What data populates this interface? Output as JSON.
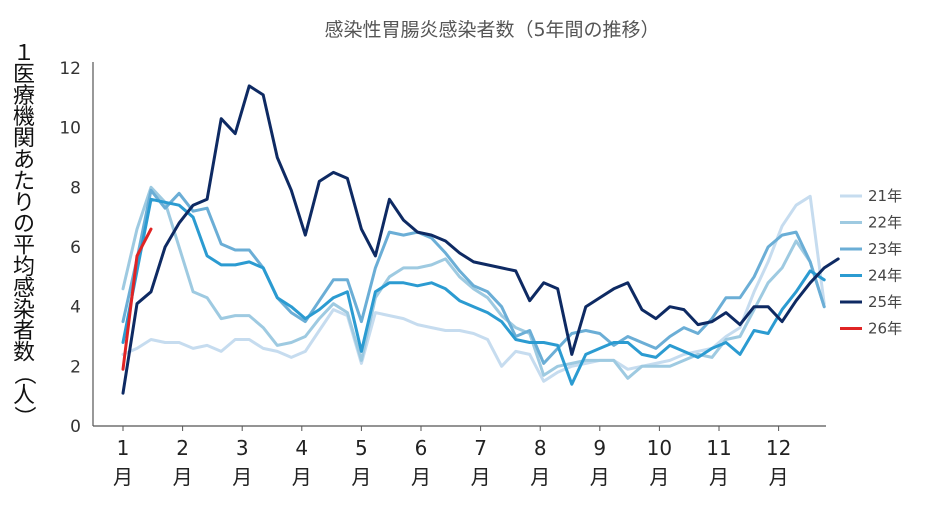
{
  "chart_data": {
    "type": "line",
    "title": "感染性胃腸炎感染者数（5年間の推移）",
    "ylabel": "１医療機関あたりの平均感染者数（人）",
    "xlabel": "",
    "ylim": [
      0,
      12
    ],
    "yticks": [
      "0",
      "2",
      "4",
      "6",
      "8",
      "10",
      "12"
    ],
    "xlim": [
      1,
      13.2
    ],
    "x_ticks": [
      {
        "num": "1",
        "unit": "月"
      },
      {
        "num": "2",
        "unit": "月"
      },
      {
        "num": "3",
        "unit": "月"
      },
      {
        "num": "4",
        "unit": "月"
      },
      {
        "num": "5",
        "unit": "月"
      },
      {
        "num": "6",
        "unit": "月"
      },
      {
        "num": "7",
        "unit": "月"
      },
      {
        "num": "8",
        "unit": "月"
      },
      {
        "num": "9",
        "unit": "月"
      },
      {
        "num": "10",
        "unit": "月"
      },
      {
        "num": "11",
        "unit": "月"
      },
      {
        "num": "12",
        "unit": "月"
      }
    ],
    "grid": false,
    "legend_position": "right",
    "series": [
      {
        "name": "21年",
        "color": "#c6dcef",
        "values": [
          2.4,
          2.6,
          2.9,
          2.8,
          2.8,
          2.6,
          2.7,
          2.5,
          2.9,
          2.9,
          2.6,
          2.5,
          2.3,
          2.5,
          3.2,
          3.9,
          3.7,
          2.1,
          3.8,
          3.7,
          3.6,
          3.4,
          3.3,
          3.2,
          3.2,
          3.1,
          2.9,
          2.0,
          2.5,
          2.4,
          1.5,
          1.8,
          2.0,
          2.1,
          2.2,
          2.2,
          1.9,
          2.0,
          2.1,
          2.2,
          2.4,
          2.5,
          2.6,
          3.0,
          3.3,
          4.5,
          5.5,
          6.7,
          7.4,
          7.7,
          4.1
        ]
      },
      {
        "name": "22年",
        "color": "#9ecae1",
        "values": [
          4.6,
          6.6,
          8.0,
          7.5,
          6.0,
          4.5,
          4.3,
          3.6,
          3.7,
          3.7,
          3.3,
          2.7,
          2.8,
          3.0,
          3.6,
          4.1,
          3.8,
          2.2,
          4.3,
          5.0,
          5.3,
          5.3,
          5.4,
          5.6,
          5.0,
          4.6,
          4.3,
          3.7,
          3.3,
          3.1,
          1.7,
          2.0,
          2.1,
          2.2,
          2.2,
          2.2,
          1.6,
          2.0,
          2.0,
          2.0,
          2.2,
          2.4,
          2.3,
          2.9,
          3.0,
          3.9,
          4.8,
          5.3,
          6.2,
          5.5,
          4.0
        ]
      },
      {
        "name": "23年",
        "color": "#6baed6",
        "values": [
          3.5,
          5.6,
          7.9,
          7.3,
          7.8,
          7.2,
          7.3,
          6.1,
          5.9,
          5.9,
          5.3,
          4.3,
          3.8,
          3.5,
          4.2,
          4.9,
          4.9,
          3.5,
          5.3,
          6.5,
          6.4,
          6.5,
          6.3,
          5.8,
          5.2,
          4.7,
          4.5,
          4.0,
          3.0,
          3.2,
          2.1,
          2.6,
          3.1,
          3.2,
          3.1,
          2.7,
          3.0,
          2.8,
          2.6,
          3.0,
          3.3,
          3.1,
          3.6,
          4.3,
          4.3,
          5.0,
          6.0,
          6.4,
          6.5,
          5.5,
          4.0
        ]
      },
      {
        "name": "24年",
        "color": "#2b9bd1",
        "values": [
          2.8,
          5.2,
          7.6,
          7.5,
          7.4,
          7.0,
          5.7,
          5.4,
          5.4,
          5.5,
          5.3,
          4.3,
          4.0,
          3.6,
          3.9,
          4.3,
          4.5,
          2.5,
          4.5,
          4.8,
          4.8,
          4.7,
          4.8,
          4.6,
          4.2,
          4.0,
          3.8,
          3.5,
          2.9,
          2.8,
          2.8,
          2.7,
          1.4,
          2.4,
          2.6,
          2.8,
          2.8,
          2.4,
          2.3,
          2.7,
          2.5,
          2.3,
          2.6,
          2.8,
          2.4,
          3.2,
          3.1,
          3.9,
          4.5,
          5.2,
          4.9
        ]
      },
      {
        "name": "25年",
        "color": "#0e2a63",
        "values": [
          1.1,
          4.1,
          4.5,
          6.0,
          6.8,
          7.4,
          7.6,
          10.3,
          9.8,
          11.4,
          11.1,
          9.0,
          7.9,
          6.4,
          8.2,
          8.5,
          8.3,
          6.6,
          5.7,
          7.6,
          6.9,
          6.5,
          6.4,
          6.2,
          5.8,
          5.5,
          5.4,
          5.3,
          5.2,
          4.2,
          4.8,
          4.6,
          2.4,
          4.0,
          4.3,
          4.6,
          4.8,
          3.9,
          3.6,
          4.0,
          3.9,
          3.4,
          3.5,
          3.8,
          3.4,
          4.0,
          4.0,
          3.5,
          4.2,
          4.8,
          5.3,
          5.6
        ]
      },
      {
        "name": "26年",
        "color": "#e02424",
        "values": [
          1.9,
          5.7,
          6.6
        ]
      }
    ]
  }
}
